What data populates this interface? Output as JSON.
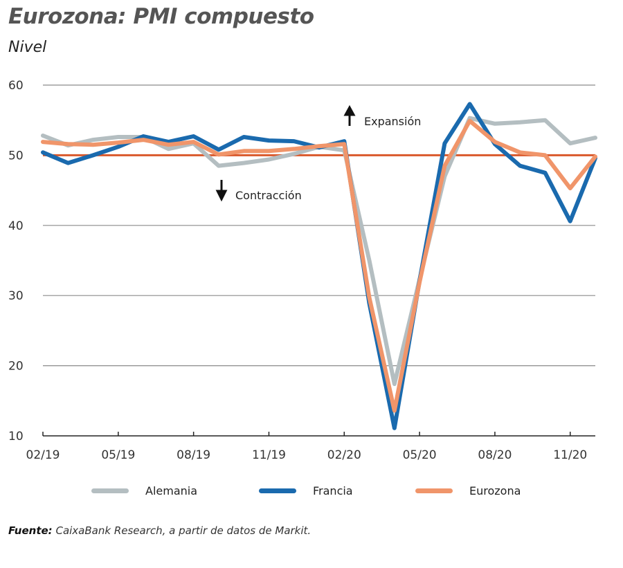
{
  "chart_data": {
    "type": "line",
    "title": "Eurozona: PMI compuesto",
    "subtitle": "Nivel",
    "xlabel": "",
    "ylabel": "Nivel",
    "ylim": [
      10,
      60
    ],
    "yticks": [
      10,
      20,
      30,
      40,
      50,
      60
    ],
    "grid": true,
    "reference_line": {
      "value": 50,
      "color": "#d9582b"
    },
    "x": [
      "02/19",
      "03/19",
      "04/19",
      "05/19",
      "06/19",
      "07/19",
      "08/19",
      "09/19",
      "10/19",
      "11/19",
      "12/19",
      "01/20",
      "02/20",
      "03/20",
      "04/20",
      "05/20",
      "06/20",
      "07/20",
      "08/20",
      "09/20",
      "10/20",
      "11/20",
      "12/20"
    ],
    "xtick_labels": [
      "02/19",
      "05/19",
      "08/19",
      "11/19",
      "02/20",
      "05/20",
      "08/20",
      "11/20"
    ],
    "series": [
      {
        "name": "Alemania",
        "color": "#b4bec1",
        "values": [
          52.8,
          51.4,
          52.2,
          52.6,
          52.6,
          50.9,
          51.7,
          48.5,
          48.9,
          49.4,
          50.2,
          51.2,
          50.7,
          35.0,
          17.4,
          32.3,
          47.0,
          55.3,
          54.5,
          54.7,
          55.0,
          51.7,
          52.5
        ]
      },
      {
        "name": "Francia",
        "color": "#1a6aae",
        "values": [
          50.4,
          48.9,
          50.0,
          51.2,
          52.7,
          51.9,
          52.7,
          50.8,
          52.6,
          52.1,
          52.0,
          51.1,
          52.0,
          28.9,
          11.1,
          32.1,
          51.7,
          57.3,
          51.6,
          48.5,
          47.5,
          40.6,
          49.6
        ]
      },
      {
        "name": "Eurozona",
        "color": "#f0956a",
        "values": [
          51.9,
          51.6,
          51.5,
          51.8,
          52.2,
          51.5,
          51.9,
          50.1,
          50.6,
          50.6,
          50.9,
          51.3,
          51.6,
          29.7,
          13.6,
          31.9,
          48.5,
          54.9,
          51.9,
          50.4,
          50.0,
          45.3,
          49.8
        ]
      }
    ],
    "annotations": [
      {
        "text": "Expansión",
        "arrow": "up"
      },
      {
        "text": "Contracción",
        "arrow": "down"
      }
    ],
    "legend": {
      "placement": "bottom",
      "entries": [
        "Alemania",
        "Francia",
        "Eurozona"
      ]
    }
  },
  "source": {
    "label": "Fuente:",
    "text": "CaixaBank Research, a partir de datos de Markit."
  }
}
